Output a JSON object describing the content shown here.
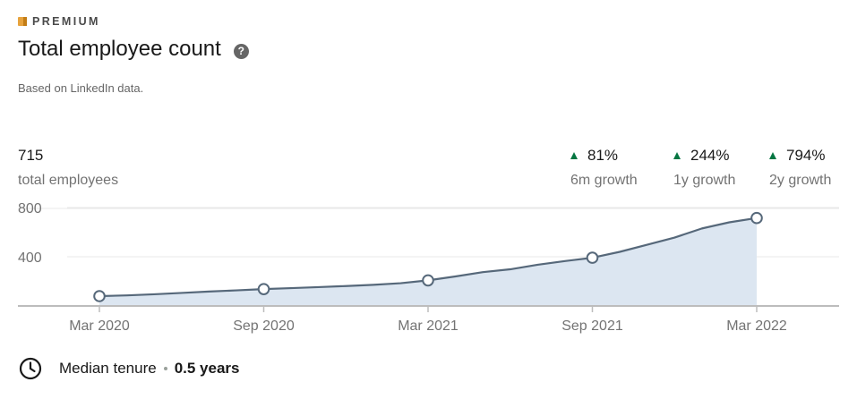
{
  "header": {
    "badge_label": "PREMIUM",
    "title": "Total employee count",
    "subtitle": "Based on LinkedIn data.",
    "help_icon": "question-circle-icon"
  },
  "stats": {
    "total_value": "715",
    "total_label": "total employees",
    "growth": [
      {
        "value": "81%",
        "label": "6m growth"
      },
      {
        "value": "244%",
        "label": "1y growth"
      },
      {
        "value": "794%",
        "label": "2y growth"
      }
    ]
  },
  "tenure": {
    "icon": "clock-icon",
    "label": "Median tenure",
    "value": "0.5 years"
  },
  "colors": {
    "line": "#56687a",
    "area": "#dce6f1",
    "growth_up": "#057642",
    "premium_gold": "#e7a33e"
  },
  "chart_data": {
    "type": "area",
    "x": [
      "Mar 2020",
      "Apr 2020",
      "May 2020",
      "Jun 2020",
      "Jul 2020",
      "Aug 2020",
      "Sep 2020",
      "Oct 2020",
      "Nov 2020",
      "Dec 2020",
      "Jan 2021",
      "Feb 2021",
      "Mar 2021",
      "Apr 2021",
      "May 2021",
      "Jun 2021",
      "Jul 2021",
      "Aug 2021",
      "Sep 2021",
      "Oct 2021",
      "Nov 2021",
      "Dec 2021",
      "Jan 2022",
      "Feb 2022",
      "Mar 2022"
    ],
    "values": [
      80,
      86,
      95,
      106,
      117,
      127,
      137,
      145,
      153,
      162,
      172,
      185,
      208,
      240,
      275,
      298,
      335,
      365,
      392,
      440,
      498,
      556,
      630,
      680,
      715
    ],
    "markers": [
      "Mar 2020",
      "Sep 2020",
      "Mar 2021",
      "Sep 2021",
      "Mar 2022"
    ],
    "x_tick_labels": [
      "Mar 2020",
      "Sep 2020",
      "Mar 2021",
      "Sep 2021",
      "Mar 2022"
    ],
    "y_ticks": [
      400,
      800
    ],
    "ylim": [
      0,
      810
    ],
    "grid": true
  }
}
